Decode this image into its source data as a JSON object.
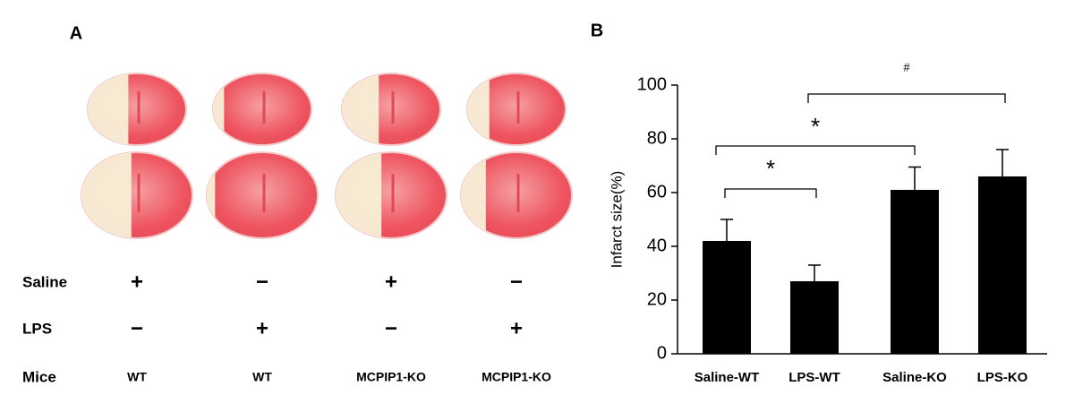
{
  "panel_a": {
    "label": "A",
    "rows": [
      {
        "label": "Saline",
        "values": [
          "+",
          "−",
          "+",
          "−"
        ]
      },
      {
        "label": "LPS",
        "values": [
          "−",
          "+",
          "−",
          "+"
        ]
      },
      {
        "label": "Mice",
        "values": [
          "WT",
          "WT",
          "MCPIP1-KO",
          "MCPIP1-KO"
        ]
      }
    ]
  },
  "chart_data": {
    "type": "bar",
    "label": "B",
    "y_label": "Infarct size(%)",
    "categories": [
      "Saline-WT",
      "LPS-WT",
      "Saline-KO",
      "LPS-KO"
    ],
    "values": [
      42,
      27,
      61,
      66
    ],
    "errors": [
      8,
      6,
      8.5,
      10
    ],
    "color": "#000000",
    "ylim": [
      0,
      100
    ],
    "yticks": [
      0,
      20,
      40,
      60,
      80,
      100
    ],
    "annotations": [
      "*",
      "*",
      "#"
    ]
  }
}
